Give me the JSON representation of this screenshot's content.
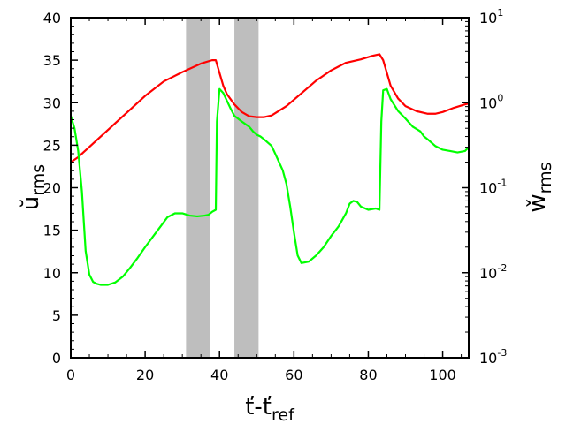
{
  "chart_data": {
    "type": "line",
    "title": "",
    "x": {
      "label_main": "ť-ť",
      "label_sub": "ref",
      "lim": [
        0,
        107
      ],
      "ticks": [
        0,
        20,
        40,
        60,
        80,
        100
      ],
      "tick_labels": [
        "0",
        "20",
        "40",
        "60",
        "80",
        "100"
      ]
    },
    "y_left": {
      "label_main": "ŭ",
      "label_sub": "rms",
      "lim": [
        0,
        40
      ],
      "ticks": [
        0,
        5,
        10,
        15,
        20,
        25,
        30,
        35,
        40
      ],
      "tick_labels": [
        "0",
        "5",
        "10",
        "15",
        "20",
        "25",
        "30",
        "35",
        "40"
      ]
    },
    "y_right": {
      "label_main": "w̌",
      "label_sub": "rms",
      "scale": "log",
      "lim": [
        0.001,
        10
      ],
      "ticks": [
        0.001,
        0.01,
        0.1,
        1,
        10
      ],
      "tick_base": [
        "10",
        "10",
        "10",
        "10",
        "10"
      ],
      "tick_exp": [
        "-3",
        "-2",
        "-1",
        "0",
        "1"
      ]
    },
    "shaded_bands": [
      {
        "x0": 31,
        "x1": 37.5
      },
      {
        "x0": 44,
        "x1": 50.5
      }
    ],
    "series": [
      {
        "axis": "left",
        "color": "#ff0000",
        "points": [
          [
            0,
            23
          ],
          [
            2,
            23.6
          ],
          [
            5,
            24.8
          ],
          [
            10,
            26.8
          ],
          [
            15,
            28.8
          ],
          [
            20,
            30.8
          ],
          [
            25,
            32.5
          ],
          [
            30,
            33.6
          ],
          [
            35,
            34.6
          ],
          [
            38,
            35.0
          ],
          [
            39,
            35.0
          ],
          [
            40,
            33.5
          ],
          [
            41,
            32.0
          ],
          [
            42,
            31.0
          ],
          [
            44,
            29.8
          ],
          [
            46,
            28.9
          ],
          [
            48,
            28.4
          ],
          [
            50,
            28.3
          ],
          [
            52,
            28.3
          ],
          [
            54,
            28.5
          ],
          [
            58,
            29.6
          ],
          [
            62,
            31.1
          ],
          [
            66,
            32.6
          ],
          [
            70,
            33.8
          ],
          [
            74,
            34.7
          ],
          [
            78,
            35.1
          ],
          [
            81,
            35.5
          ],
          [
            83,
            35.7
          ],
          [
            84,
            35.0
          ],
          [
            85,
            33.5
          ],
          [
            86,
            32.0
          ],
          [
            88,
            30.5
          ],
          [
            90,
            29.6
          ],
          [
            93,
            29.0
          ],
          [
            96,
            28.7
          ],
          [
            98,
            28.7
          ],
          [
            100,
            28.9
          ],
          [
            103,
            29.4
          ],
          [
            106,
            29.8
          ],
          [
            107,
            29.9
          ]
        ]
      },
      {
        "axis": "right",
        "color": "#00ff00",
        "points": [
          [
            0,
            0.7
          ],
          [
            1,
            0.5
          ],
          [
            2,
            0.27
          ],
          [
            3,
            0.09
          ],
          [
            3.5,
            0.04
          ],
          [
            4,
            0.018
          ],
          [
            5,
            0.0095
          ],
          [
            6,
            0.0078
          ],
          [
            7,
            0.0074
          ],
          [
            8,
            0.0072
          ],
          [
            10,
            0.0072
          ],
          [
            12,
            0.0077
          ],
          [
            14,
            0.009
          ],
          [
            16,
            0.0115
          ],
          [
            18,
            0.015
          ],
          [
            20,
            0.02
          ],
          [
            23,
            0.03
          ],
          [
            26,
            0.045
          ],
          [
            28,
            0.05
          ],
          [
            30,
            0.05
          ],
          [
            32,
            0.047
          ],
          [
            34,
            0.046
          ],
          [
            36,
            0.047
          ],
          [
            37,
            0.048
          ],
          [
            38,
            0.052
          ],
          [
            39,
            0.055
          ],
          [
            39.3,
            0.6
          ],
          [
            40,
            1.45
          ],
          [
            41,
            1.3
          ],
          [
            42,
            1.05
          ],
          [
            43,
            0.85
          ],
          [
            44,
            0.7
          ],
          [
            46,
            0.6
          ],
          [
            48,
            0.52
          ],
          [
            49,
            0.46
          ],
          [
            50,
            0.42
          ],
          [
            51,
            0.4
          ],
          [
            52,
            0.37
          ],
          [
            54,
            0.31
          ],
          [
            55,
            0.25
          ],
          [
            56,
            0.2
          ],
          [
            57,
            0.16
          ],
          [
            58,
            0.11
          ],
          [
            59,
            0.06
          ],
          [
            60,
            0.03
          ],
          [
            61,
            0.016
          ],
          [
            62,
            0.013
          ],
          [
            64,
            0.0135
          ],
          [
            66,
            0.016
          ],
          [
            68,
            0.02
          ],
          [
            70,
            0.027
          ],
          [
            72,
            0.035
          ],
          [
            74,
            0.05
          ],
          [
            75,
            0.065
          ],
          [
            76,
            0.07
          ],
          [
            77,
            0.068
          ],
          [
            78,
            0.06
          ],
          [
            80,
            0.055
          ],
          [
            82,
            0.057
          ],
          [
            83,
            0.055
          ],
          [
            83.5,
            0.6
          ],
          [
            84,
            1.4
          ],
          [
            85,
            1.45
          ],
          [
            86,
            1.1
          ],
          [
            88,
            0.8
          ],
          [
            90,
            0.65
          ],
          [
            92,
            0.52
          ],
          [
            94,
            0.46
          ],
          [
            95,
            0.4
          ],
          [
            96,
            0.37
          ],
          [
            98,
            0.31
          ],
          [
            100,
            0.28
          ],
          [
            102,
            0.27
          ],
          [
            104,
            0.26
          ],
          [
            106,
            0.27
          ],
          [
            107,
            0.3
          ]
        ]
      }
    ],
    "colors": {
      "band": "#bebebe",
      "axis": "#000000",
      "background": "#ffffff"
    }
  }
}
